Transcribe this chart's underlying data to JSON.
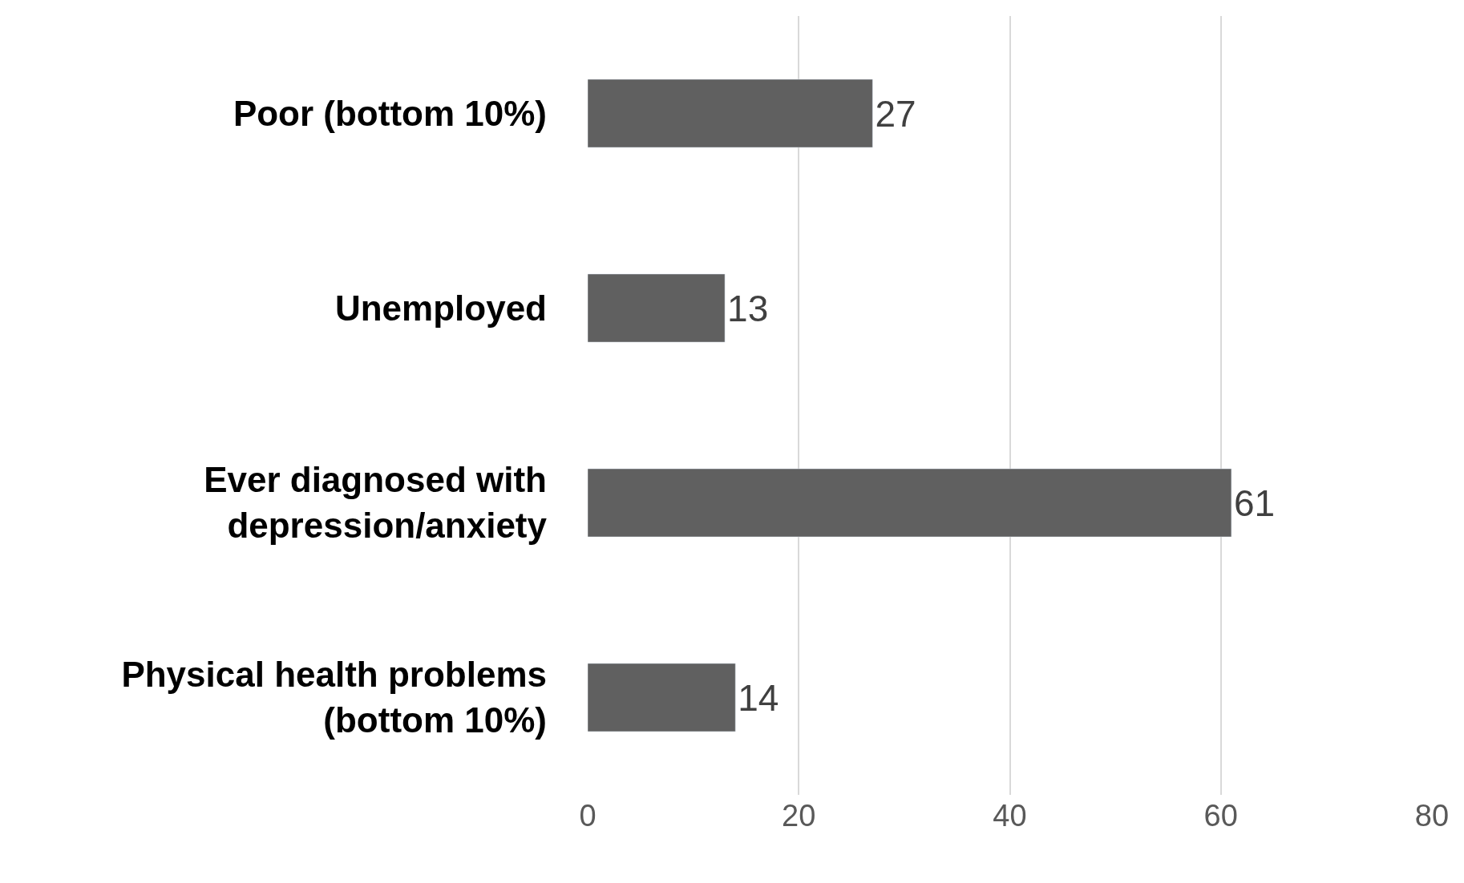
{
  "chart_data": {
    "type": "bar",
    "orientation": "horizontal",
    "categories": [
      "Poor (bottom 10%)",
      "Unemployed",
      "Ever diagnosed with\ndepression/anxiety",
      "Physical health problems\n(bottom 10%)"
    ],
    "values": [
      27,
      13,
      61,
      14
    ],
    "color": "#606060",
    "data_labels": true,
    "xlim": [
      0,
      80
    ],
    "xticks": [
      0,
      20,
      40,
      60,
      80
    ],
    "grid": "x",
    "legend": false
  }
}
